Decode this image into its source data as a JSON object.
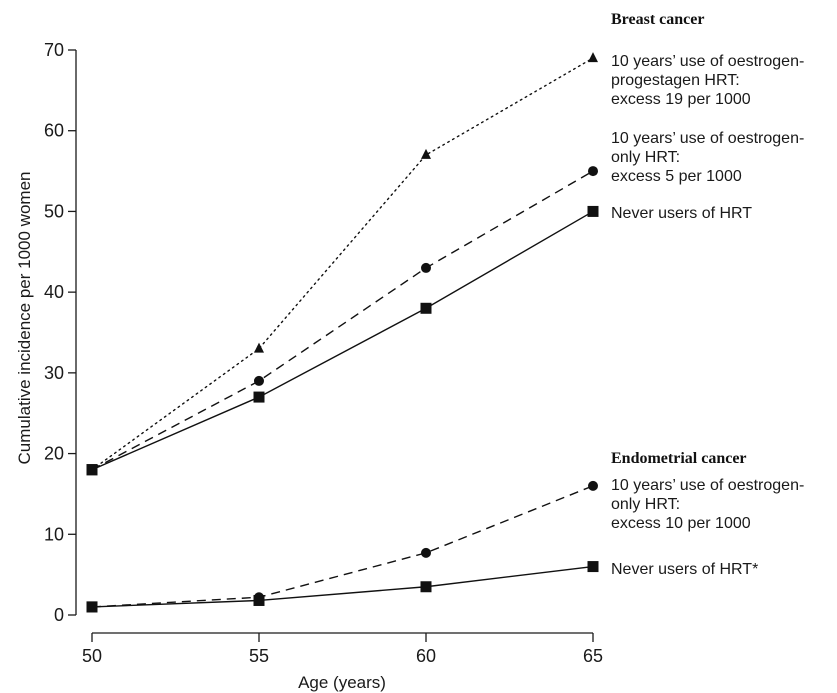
{
  "chart_data": {
    "type": "line",
    "title": "",
    "xlabel": "Age (years)",
    "ylabel": "Cumulative incidence per 1000 women",
    "xlim": [
      50,
      65
    ],
    "ylim": [
      0,
      70
    ],
    "x_ticks": [
      50,
      55,
      60,
      65
    ],
    "y_ticks": [
      0,
      10,
      20,
      30,
      40,
      50,
      60,
      70
    ],
    "grid": false,
    "groups": [
      {
        "title": "Breast cancer",
        "series": [
          {
            "label_lines": [
              "10 years’ use of oestrogen-",
              "progestagen HRT:",
              "excess 19 per 1000"
            ],
            "marker": "triangle",
            "line_style": "dotted",
            "x": [
              50,
              55,
              60,
              65
            ],
            "y": [
              18,
              33,
              57,
              69
            ]
          },
          {
            "label_lines": [
              "10 years’ use of oestrogen-",
              "only HRT:",
              "excess 5 per 1000"
            ],
            "marker": "circle",
            "line_style": "dashed",
            "x": [
              50,
              55,
              60,
              65
            ],
            "y": [
              18,
              29,
              43,
              55
            ]
          },
          {
            "label_lines": [
              "Never users of HRT"
            ],
            "marker": "square",
            "line_style": "solid",
            "x": [
              50,
              55,
              60,
              65
            ],
            "y": [
              18,
              27,
              38,
              50
            ]
          }
        ]
      },
      {
        "title": "Endometrial cancer",
        "series": [
          {
            "label_lines": [
              "10 years’ use of oestrogen-",
              "only HRT:",
              "excess 10 per 1000"
            ],
            "marker": "circle",
            "line_style": "dashed",
            "x": [
              50,
              55,
              60,
              65
            ],
            "y": [
              1,
              2.2,
              7.7,
              16
            ]
          },
          {
            "label_lines": [
              "Never users of HRT*"
            ],
            "marker": "square",
            "line_style": "solid",
            "x": [
              50,
              55,
              60,
              65
            ],
            "y": [
              1,
              1.8,
              3.5,
              6
            ]
          }
        ]
      }
    ]
  }
}
